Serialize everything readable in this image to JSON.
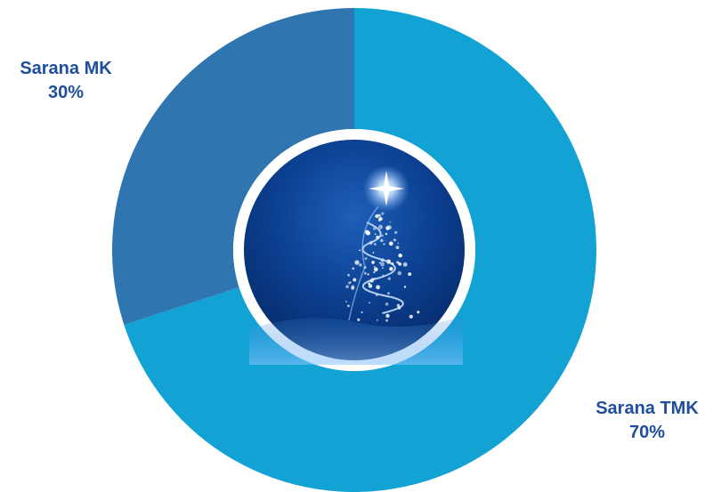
{
  "chart_data": {
    "type": "pie",
    "donut": true,
    "title": "",
    "slices": [
      {
        "label": "Sarana TMK",
        "value": 70,
        "value_label": "70%",
        "color": "#12A2D3"
      },
      {
        "label": "Sarana MK",
        "value": 30,
        "value_label": "30%",
        "color": "#2F76B0"
      }
    ],
    "center_image": "christmas-tree-illustration",
    "label_color": "#1F4E9C",
    "legend": "none"
  }
}
